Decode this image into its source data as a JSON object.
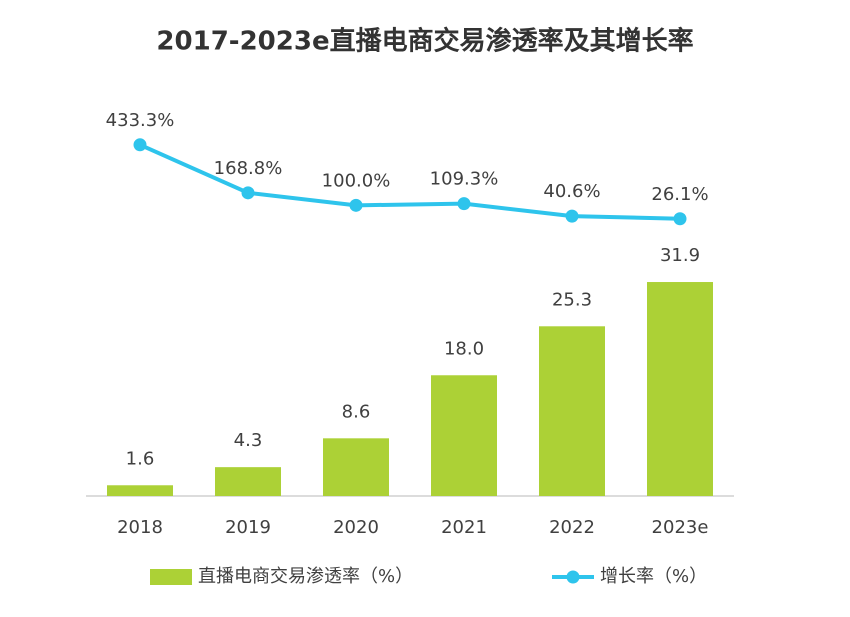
{
  "chart_data": {
    "type": "bar",
    "title": "2017-2023e直播电商交易渗透率及其增长率",
    "categories": [
      "2018",
      "2019",
      "2020",
      "2021",
      "2022",
      "2023e"
    ],
    "ylim": [
      0,
      65
    ],
    "y2lim": [
      -1500,
      900
    ],
    "series": [
      {
        "name": "直播电商交易渗透率（%）",
        "type": "bar",
        "color": "#acd136",
        "values": [
          1.6,
          4.3,
          8.6,
          18.0,
          25.3,
          31.9
        ],
        "value_labels": [
          "1.6",
          "4.3",
          "8.6",
          "18.0",
          "25.3",
          "31.9"
        ]
      },
      {
        "name": "增长率（%）",
        "type": "line",
        "axis": "y2",
        "color": "#2ec4ec",
        "values": [
          433.3,
          168.8,
          100.0,
          109.3,
          40.6,
          26.1
        ],
        "value_labels": [
          "433.3%",
          "168.8%",
          "100.0%",
          "109.3%",
          "40.6%",
          "26.1%"
        ]
      }
    ],
    "legend": "bottom"
  }
}
